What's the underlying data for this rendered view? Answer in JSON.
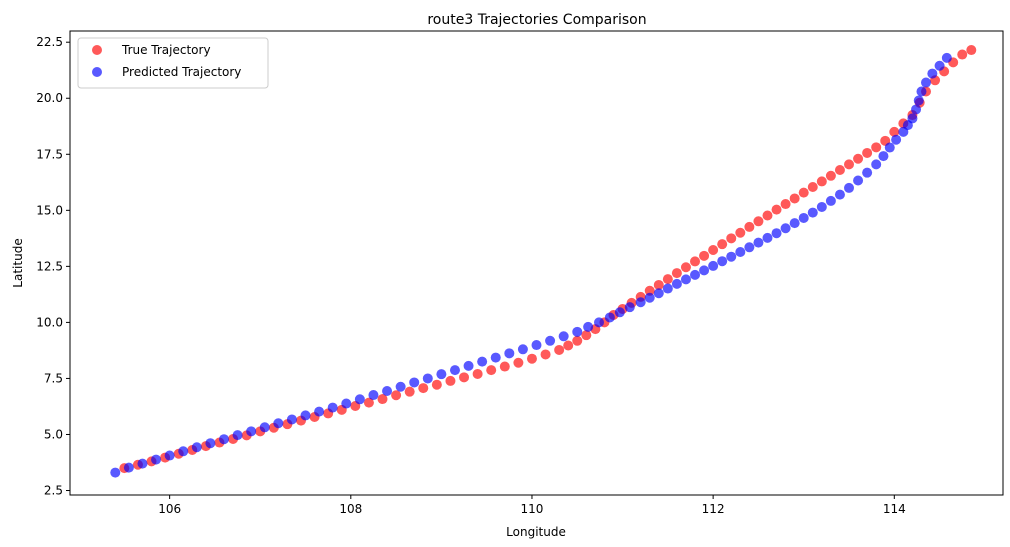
{
  "chart_data": {
    "type": "scatter",
    "title": "route3 Trajectories Comparison",
    "xlabel": "Longitude",
    "ylabel": "Latitude",
    "xlim": [
      104.9,
      115.2
    ],
    "ylim": [
      2.3,
      23.0
    ],
    "xticks": [
      106,
      108,
      110,
      112,
      114
    ],
    "xtick_labels": [
      "106",
      "108",
      "110",
      "112",
      "114"
    ],
    "yticks": [
      2.5,
      5.0,
      7.5,
      10.0,
      12.5,
      15.0,
      17.5,
      20.0,
      22.5
    ],
    "ytick_labels": [
      "2.5",
      "5.0",
      "7.5",
      "10.0",
      "12.5",
      "15.0",
      "17.5",
      "20.0",
      "22.5"
    ],
    "grid": false,
    "legend_position": "top-left",
    "series": [
      {
        "name": "True Trajectory",
        "color": "#ff0000",
        "alpha": 0.65,
        "points": [
          [
            105.5,
            3.5
          ],
          [
            105.65,
            3.65
          ],
          [
            105.8,
            3.8
          ],
          [
            105.95,
            3.97
          ],
          [
            106.1,
            4.14
          ],
          [
            106.25,
            4.31
          ],
          [
            106.4,
            4.48
          ],
          [
            106.55,
            4.64
          ],
          [
            106.7,
            4.8
          ],
          [
            106.85,
            4.96
          ],
          [
            107.0,
            5.14
          ],
          [
            107.15,
            5.3
          ],
          [
            107.3,
            5.46
          ],
          [
            107.45,
            5.62
          ],
          [
            107.6,
            5.78
          ],
          [
            107.75,
            5.94
          ],
          [
            107.9,
            6.1
          ],
          [
            108.05,
            6.27
          ],
          [
            108.2,
            6.42
          ],
          [
            108.35,
            6.58
          ],
          [
            108.5,
            6.75
          ],
          [
            108.65,
            6.91
          ],
          [
            108.8,
            7.07
          ],
          [
            108.95,
            7.22
          ],
          [
            109.1,
            7.39
          ],
          [
            109.25,
            7.55
          ],
          [
            109.4,
            7.7
          ],
          [
            109.55,
            7.87
          ],
          [
            109.7,
            8.03
          ],
          [
            109.85,
            8.2
          ],
          [
            110.0,
            8.38
          ],
          [
            110.15,
            8.57
          ],
          [
            110.3,
            8.77
          ],
          [
            110.4,
            8.97
          ],
          [
            110.5,
            9.18
          ],
          [
            110.6,
            9.43
          ],
          [
            110.7,
            9.7
          ],
          [
            110.8,
            10.0
          ],
          [
            110.9,
            10.33
          ],
          [
            111.0,
            10.6
          ],
          [
            111.1,
            10.87
          ],
          [
            111.2,
            11.14
          ],
          [
            111.3,
            11.41
          ],
          [
            111.4,
            11.67
          ],
          [
            111.5,
            11.93
          ],
          [
            111.6,
            12.2
          ],
          [
            111.7,
            12.46
          ],
          [
            111.8,
            12.72
          ],
          [
            111.9,
            12.97
          ],
          [
            112.0,
            13.23
          ],
          [
            112.1,
            13.49
          ],
          [
            112.2,
            13.75
          ],
          [
            112.3,
            14.0
          ],
          [
            112.4,
            14.26
          ],
          [
            112.5,
            14.51
          ],
          [
            112.6,
            14.77
          ],
          [
            112.7,
            15.03
          ],
          [
            112.8,
            15.28
          ],
          [
            112.9,
            15.53
          ],
          [
            113.0,
            15.79
          ],
          [
            113.1,
            16.04
          ],
          [
            113.2,
            16.29
          ],
          [
            113.3,
            16.54
          ],
          [
            113.4,
            16.8
          ],
          [
            113.5,
            17.05
          ],
          [
            113.6,
            17.3
          ],
          [
            113.7,
            17.56
          ],
          [
            113.8,
            17.81
          ],
          [
            113.9,
            18.1
          ],
          [
            114.0,
            18.5
          ],
          [
            114.1,
            18.88
          ],
          [
            114.2,
            19.25
          ],
          [
            114.28,
            19.8
          ],
          [
            114.35,
            20.3
          ],
          [
            114.45,
            20.8
          ],
          [
            114.55,
            21.2
          ],
          [
            114.65,
            21.6
          ],
          [
            114.75,
            21.95
          ],
          [
            114.85,
            22.15
          ]
        ]
      },
      {
        "name": "Predicted Trajectory",
        "color": "#0000ff",
        "alpha": 0.65,
        "points": [
          [
            105.4,
            3.3
          ],
          [
            105.55,
            3.52
          ],
          [
            105.7,
            3.7
          ],
          [
            105.85,
            3.88
          ],
          [
            106.0,
            4.06
          ],
          [
            106.15,
            4.25
          ],
          [
            106.3,
            4.43
          ],
          [
            106.45,
            4.61
          ],
          [
            106.6,
            4.79
          ],
          [
            106.75,
            4.97
          ],
          [
            106.9,
            5.14
          ],
          [
            107.05,
            5.32
          ],
          [
            107.2,
            5.5
          ],
          [
            107.35,
            5.67
          ],
          [
            107.5,
            5.85
          ],
          [
            107.65,
            6.02
          ],
          [
            107.8,
            6.2
          ],
          [
            107.95,
            6.38
          ],
          [
            108.1,
            6.57
          ],
          [
            108.25,
            6.76
          ],
          [
            108.4,
            6.94
          ],
          [
            108.55,
            7.13
          ],
          [
            108.7,
            7.32
          ],
          [
            108.85,
            7.5
          ],
          [
            109.0,
            7.69
          ],
          [
            109.15,
            7.87
          ],
          [
            109.3,
            8.06
          ],
          [
            109.45,
            8.25
          ],
          [
            109.6,
            8.43
          ],
          [
            109.75,
            8.62
          ],
          [
            109.9,
            8.8
          ],
          [
            110.05,
            8.99
          ],
          [
            110.2,
            9.18
          ],
          [
            110.35,
            9.38
          ],
          [
            110.5,
            9.58
          ],
          [
            110.62,
            9.8
          ],
          [
            110.74,
            10.0
          ],
          [
            110.86,
            10.22
          ],
          [
            110.97,
            10.45
          ],
          [
            111.08,
            10.68
          ],
          [
            111.2,
            10.9
          ],
          [
            111.3,
            11.1
          ],
          [
            111.4,
            11.3
          ],
          [
            111.5,
            11.51
          ],
          [
            111.6,
            11.72
          ],
          [
            111.7,
            11.92
          ],
          [
            111.8,
            12.12
          ],
          [
            111.9,
            12.32
          ],
          [
            112.0,
            12.52
          ],
          [
            112.1,
            12.73
          ],
          [
            112.2,
            12.93
          ],
          [
            112.3,
            13.14
          ],
          [
            112.4,
            13.35
          ],
          [
            112.5,
            13.56
          ],
          [
            112.6,
            13.77
          ],
          [
            112.7,
            13.98
          ],
          [
            112.8,
            14.2
          ],
          [
            112.9,
            14.43
          ],
          [
            113.0,
            14.66
          ],
          [
            113.1,
            14.9
          ],
          [
            113.2,
            15.15
          ],
          [
            113.3,
            15.42
          ],
          [
            113.4,
            15.7
          ],
          [
            113.5,
            16.0
          ],
          [
            113.6,
            16.33
          ],
          [
            113.7,
            16.68
          ],
          [
            113.8,
            17.05
          ],
          [
            113.88,
            17.42
          ],
          [
            113.95,
            17.8
          ],
          [
            114.02,
            18.15
          ],
          [
            114.1,
            18.5
          ],
          [
            114.15,
            18.8
          ],
          [
            114.2,
            19.1
          ],
          [
            114.24,
            19.5
          ],
          [
            114.27,
            19.9
          ],
          [
            114.3,
            20.3
          ],
          [
            114.35,
            20.7
          ],
          [
            114.42,
            21.1
          ],
          [
            114.5,
            21.45
          ],
          [
            114.58,
            21.8
          ]
        ]
      }
    ]
  }
}
